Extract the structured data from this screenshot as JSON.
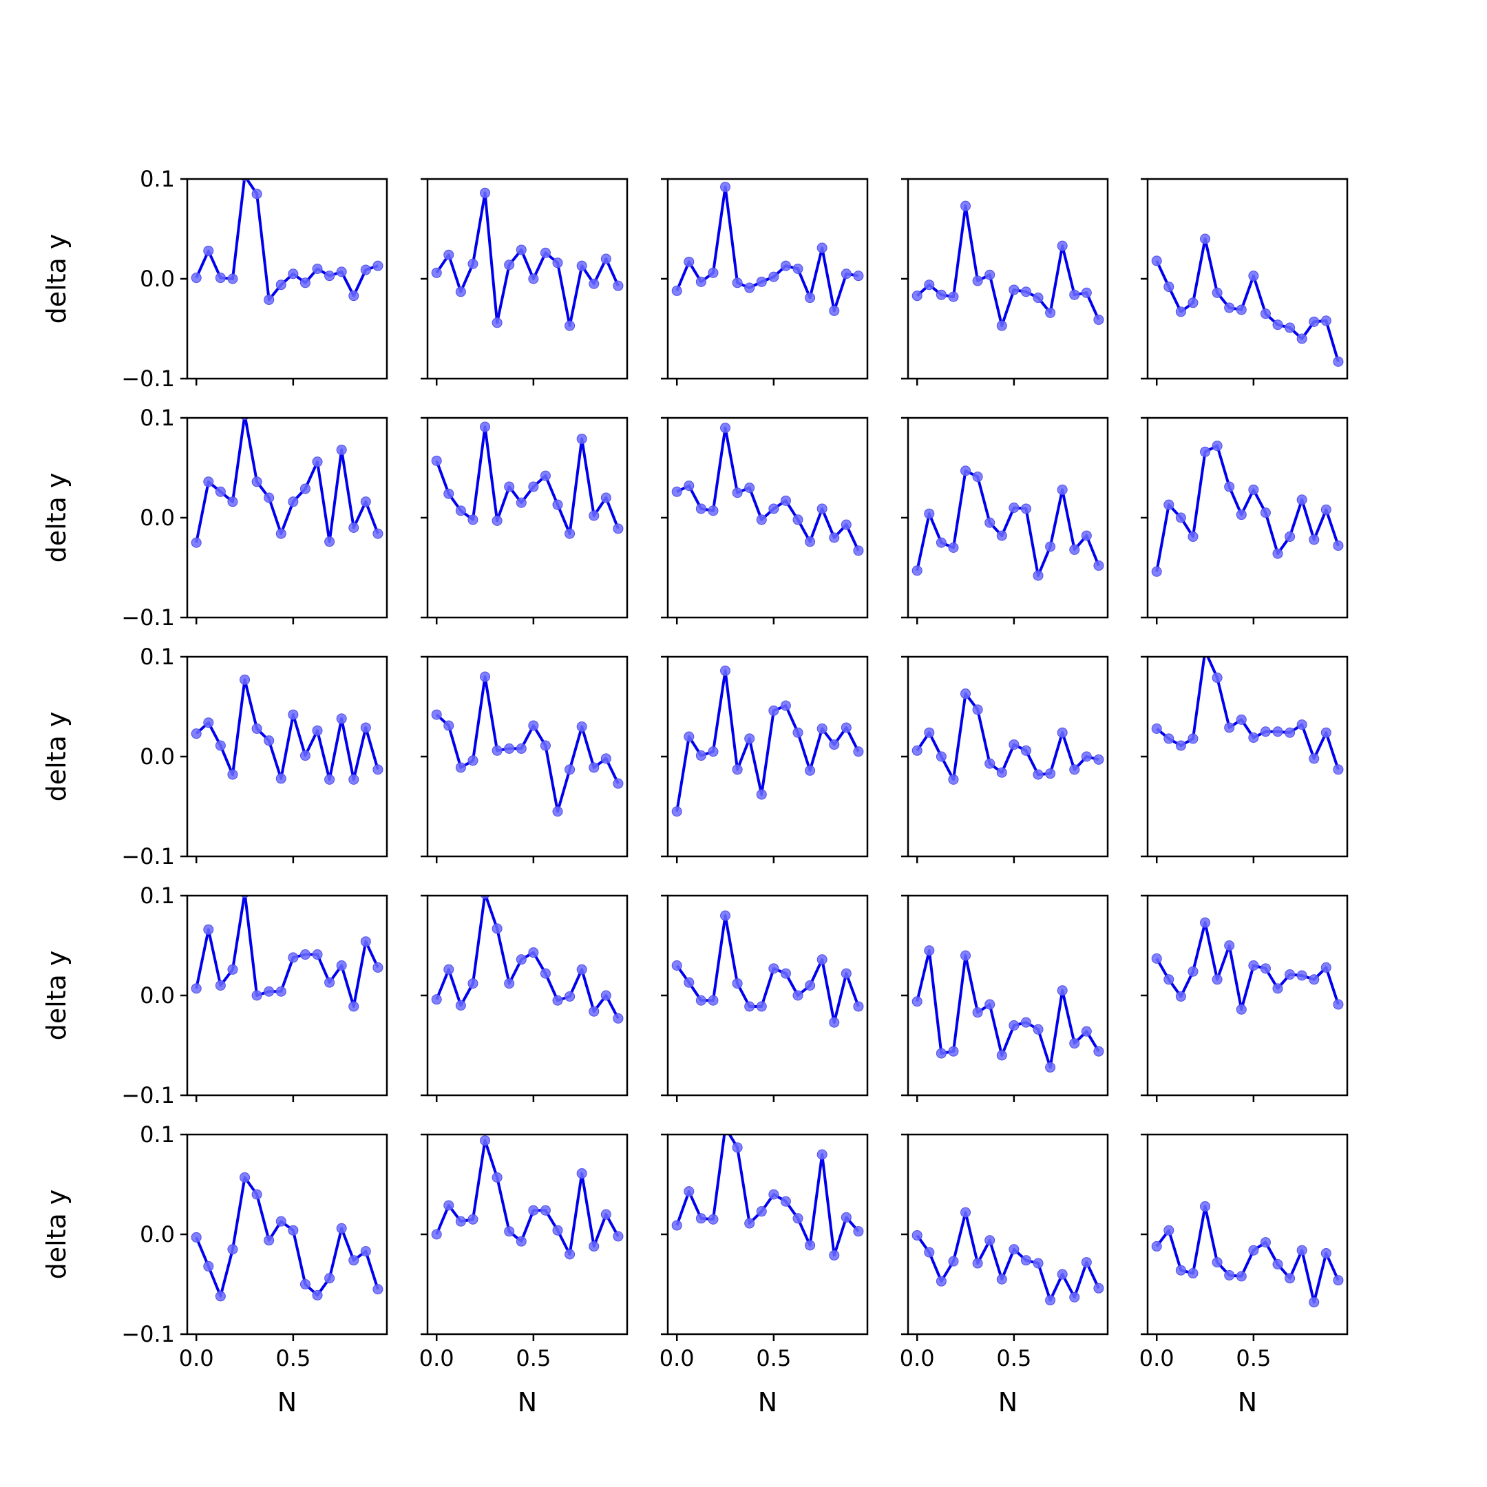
{
  "chart_data": {
    "type": "line",
    "layout": "5x5 grid of small multiples",
    "x": [
      0.0,
      0.0625,
      0.125,
      0.1875,
      0.25,
      0.3125,
      0.375,
      0.4375,
      0.5,
      0.5625,
      0.625,
      0.6875,
      0.75,
      0.8125,
      0.875,
      0.9375
    ],
    "xlabel": "N",
    "ylabel": "delta y",
    "xlim": [
      -0.047,
      0.984
    ],
    "ylim": [
      -0.1,
      0.1
    ],
    "xticks": [
      0.0,
      0.5
    ],
    "xtick_labels": [
      "0.0",
      "0.5"
    ],
    "yticks": [
      -0.1,
      0.0,
      0.1
    ],
    "ytick_labels": [
      "−0.1",
      "0.0",
      "0.1"
    ],
    "grid": false,
    "line_color": "#0000ee",
    "marker_color": "#6b6bff",
    "panels": [
      {
        "values": [
          0.001,
          0.028,
          0.001,
          0.0,
          0.103,
          0.085,
          -0.021,
          -0.006,
          0.005,
          -0.004,
          0.01,
          0.003,
          0.007,
          -0.017,
          0.009,
          0.013
        ]
      },
      {
        "values": [
          0.006,
          0.024,
          -0.013,
          0.015,
          0.086,
          -0.044,
          0.014,
          0.029,
          0.0,
          0.026,
          0.016,
          -0.047,
          0.013,
          -0.005,
          0.02,
          -0.007
        ]
      },
      {
        "values": [
          -0.012,
          0.017,
          -0.003,
          0.006,
          0.092,
          -0.004,
          -0.009,
          -0.003,
          0.002,
          0.013,
          0.01,
          -0.019,
          0.031,
          -0.032,
          0.005,
          0.003
        ]
      },
      {
        "values": [
          -0.017,
          -0.006,
          -0.016,
          -0.018,
          0.073,
          -0.002,
          0.004,
          -0.047,
          -0.011,
          -0.013,
          -0.019,
          -0.034,
          0.033,
          -0.016,
          -0.014,
          -0.041
        ]
      },
      {
        "values": [
          0.018,
          -0.008,
          -0.033,
          -0.024,
          0.04,
          -0.014,
          -0.029,
          -0.031,
          0.003,
          -0.035,
          -0.046,
          -0.049,
          -0.06,
          -0.043,
          -0.042,
          -0.083
        ]
      },
      {
        "values": [
          -0.025,
          0.036,
          0.026,
          0.016,
          0.103,
          0.036,
          0.02,
          -0.016,
          0.016,
          0.029,
          0.056,
          -0.024,
          0.068,
          -0.01,
          0.016,
          -0.016
        ]
      },
      {
        "values": [
          0.057,
          0.024,
          0.007,
          -0.002,
          0.091,
          -0.003,
          0.031,
          0.015,
          0.031,
          0.042,
          0.013,
          -0.016,
          0.079,
          0.002,
          0.02,
          -0.011
        ]
      },
      {
        "values": [
          0.026,
          0.032,
          0.009,
          0.007,
          0.09,
          0.025,
          0.03,
          -0.002,
          0.009,
          0.017,
          -0.002,
          -0.024,
          0.009,
          -0.02,
          -0.007,
          -0.033
        ]
      },
      {
        "values": [
          -0.053,
          0.004,
          -0.025,
          -0.03,
          0.047,
          0.041,
          -0.005,
          -0.018,
          0.01,
          0.009,
          -0.058,
          -0.029,
          0.028,
          -0.032,
          -0.018,
          -0.048
        ]
      },
      {
        "values": [
          -0.054,
          0.013,
          0.0,
          -0.019,
          0.066,
          0.072,
          0.031,
          0.003,
          0.028,
          0.005,
          -0.036,
          -0.019,
          0.018,
          -0.022,
          0.008,
          -0.028
        ]
      },
      {
        "values": [
          0.023,
          0.034,
          0.011,
          -0.018,
          0.077,
          0.028,
          0.016,
          -0.022,
          0.042,
          0.001,
          0.026,
          -0.023,
          0.038,
          -0.023,
          0.029,
          -0.013
        ]
      },
      {
        "values": [
          0.042,
          0.031,
          -0.011,
          -0.004,
          0.08,
          0.006,
          0.008,
          0.008,
          0.031,
          0.011,
          -0.055,
          -0.013,
          0.03,
          -0.011,
          -0.002,
          -0.027
        ]
      },
      {
        "values": [
          -0.055,
          0.02,
          0.001,
          0.005,
          0.086,
          -0.013,
          0.018,
          -0.038,
          0.046,
          0.051,
          0.024,
          -0.014,
          0.028,
          0.012,
          0.029,
          0.005
        ]
      },
      {
        "values": [
          0.006,
          0.024,
          0.0,
          -0.023,
          0.063,
          0.047,
          -0.007,
          -0.016,
          0.012,
          0.006,
          -0.018,
          -0.017,
          0.024,
          -0.013,
          0.0,
          -0.003
        ]
      },
      {
        "values": [
          0.028,
          0.018,
          0.011,
          0.018,
          0.106,
          0.079,
          0.029,
          0.037,
          0.019,
          0.025,
          0.025,
          0.024,
          0.032,
          -0.002,
          0.024,
          -0.013
        ]
      },
      {
        "values": [
          0.007,
          0.066,
          0.01,
          0.026,
          0.103,
          0.0,
          0.004,
          0.004,
          0.038,
          0.041,
          0.041,
          0.013,
          0.03,
          -0.011,
          0.054,
          0.028
        ]
      },
      {
        "values": [
          -0.004,
          0.026,
          -0.01,
          0.012,
          0.102,
          0.067,
          0.012,
          0.036,
          0.043,
          0.022,
          -0.005,
          -0.001,
          0.026,
          -0.016,
          0.0,
          -0.023
        ]
      },
      {
        "values": [
          0.03,
          0.013,
          -0.005,
          -0.005,
          0.08,
          0.012,
          -0.011,
          -0.011,
          0.027,
          0.022,
          0.0,
          0.01,
          0.036,
          -0.027,
          0.022,
          -0.011
        ]
      },
      {
        "values": [
          -0.006,
          0.045,
          -0.058,
          -0.056,
          0.04,
          -0.017,
          -0.009,
          -0.06,
          -0.03,
          -0.027,
          -0.034,
          -0.072,
          0.005,
          -0.048,
          -0.036,
          -0.056
        ]
      },
      {
        "values": [
          0.037,
          0.016,
          -0.001,
          0.024,
          0.073,
          0.016,
          0.05,
          -0.014,
          0.03,
          0.027,
          0.007,
          0.021,
          0.02,
          0.016,
          0.028,
          -0.009
        ]
      },
      {
        "values": [
          -0.003,
          -0.032,
          -0.062,
          -0.015,
          0.057,
          0.04,
          -0.006,
          0.013,
          0.004,
          -0.05,
          -0.061,
          -0.044,
          0.006,
          -0.026,
          -0.017,
          -0.055
        ]
      },
      {
        "values": [
          0.0,
          0.029,
          0.013,
          0.015,
          0.094,
          0.057,
          0.003,
          -0.007,
          0.024,
          0.024,
          0.004,
          -0.02,
          0.061,
          -0.012,
          0.02,
          -0.002
        ]
      },
      {
        "values": [
          0.009,
          0.043,
          0.016,
          0.015,
          0.107,
          0.087,
          0.011,
          0.023,
          0.04,
          0.033,
          0.016,
          -0.011,
          0.08,
          -0.021,
          0.017,
          0.003
        ]
      },
      {
        "values": [
          -0.001,
          -0.018,
          -0.047,
          -0.027,
          0.022,
          -0.029,
          -0.006,
          -0.045,
          -0.015,
          -0.026,
          -0.029,
          -0.066,
          -0.04,
          -0.063,
          -0.028,
          -0.054
        ]
      },
      {
        "values": [
          -0.012,
          0.004,
          -0.036,
          -0.039,
          0.028,
          -0.028,
          -0.041,
          -0.042,
          -0.016,
          -0.008,
          -0.03,
          -0.044,
          -0.016,
          -0.068,
          -0.019,
          -0.046
        ]
      }
    ]
  }
}
